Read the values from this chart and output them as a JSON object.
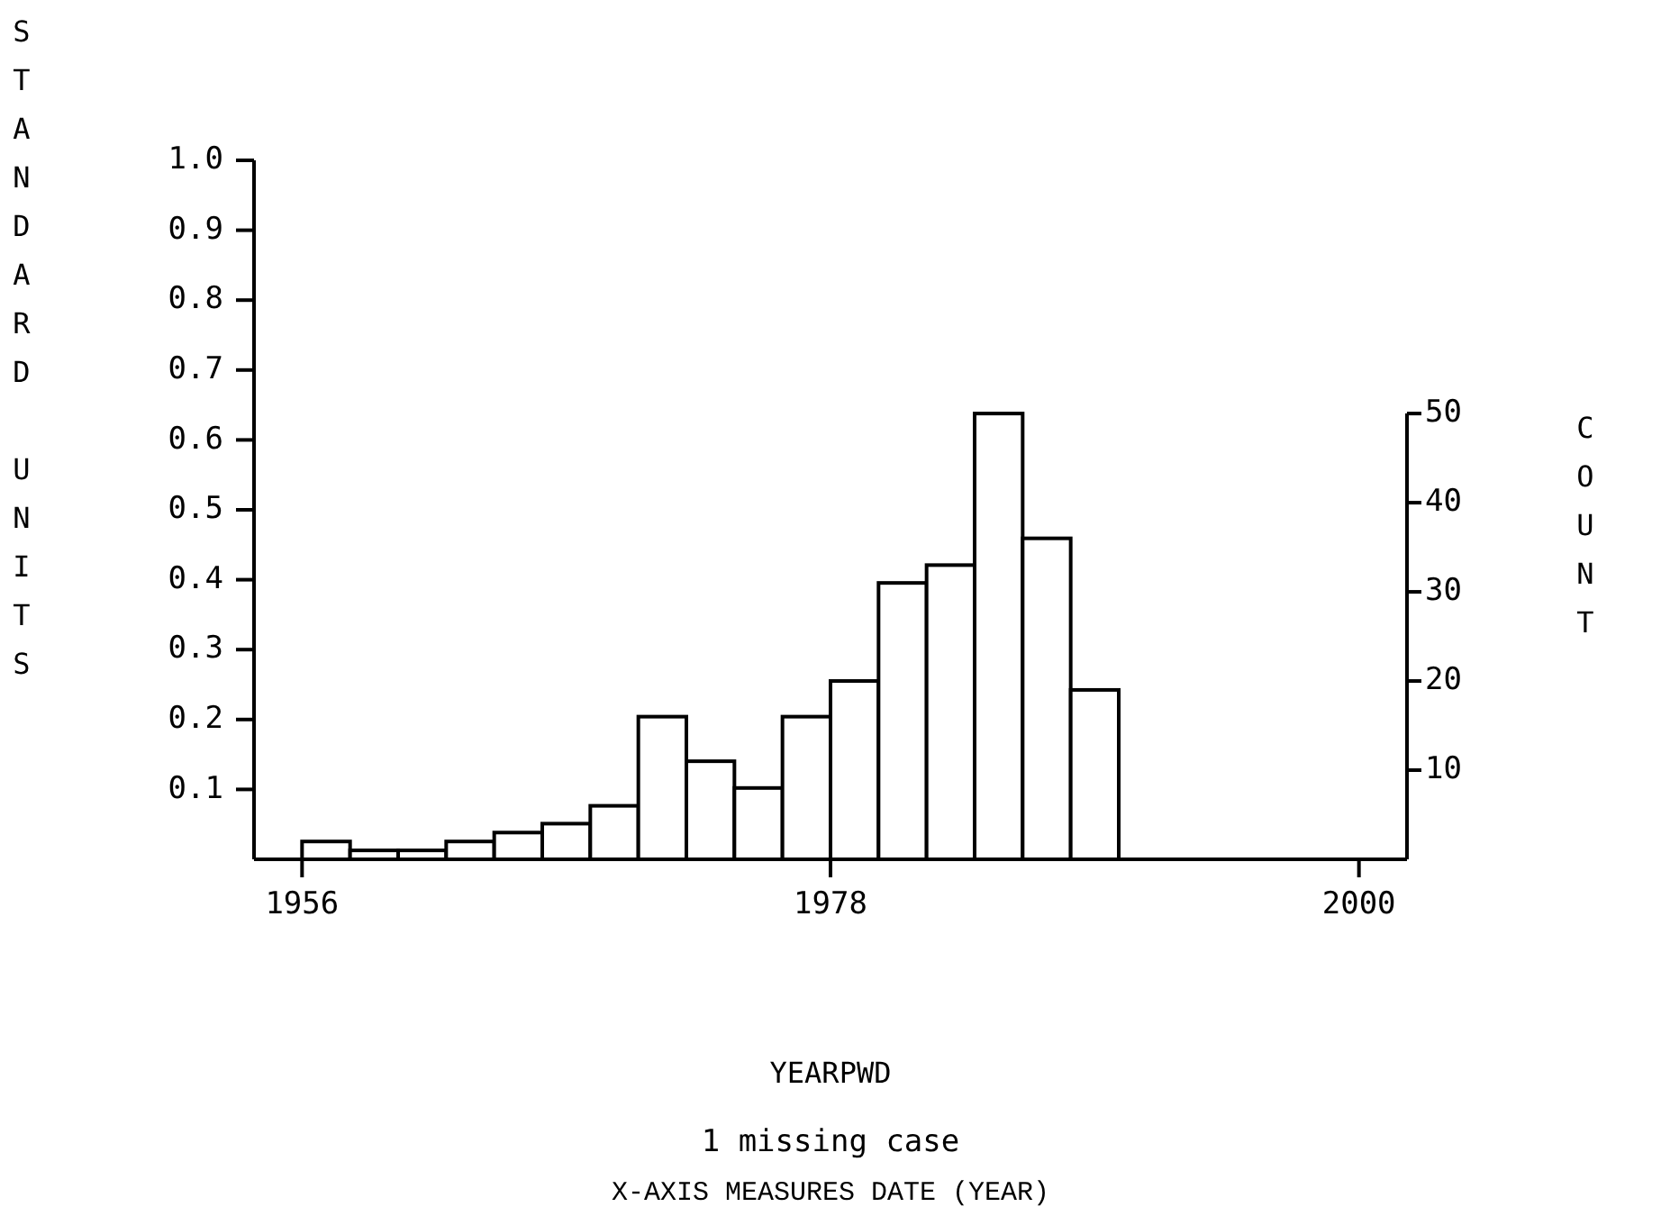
{
  "chart_data": {
    "type": "histogram",
    "bins": [
      1956,
      1958,
      1960,
      1962,
      1964,
      1966,
      1968,
      1970,
      1972,
      1974,
      1976,
      1978,
      1980,
      1982,
      1984,
      1986,
      1988,
      1990
    ],
    "series": [
      {
        "values": [
          2,
          1,
          1,
          2,
          3,
          4,
          6,
          16,
          11,
          8,
          16,
          20,
          31,
          33,
          50,
          36,
          19
        ],
        "axis": "y2"
      }
    ],
    "xlabel": "YEARPWD",
    "ylabel": "STANDARD UNITS",
    "y2label": "COUNT",
    "annotations": [
      "1 missing case",
      "X-AXIS MEASURES DATE (YEAR)"
    ],
    "xlim": [
      1954,
      2002
    ],
    "xticks": [
      1956,
      1978,
      2000
    ],
    "ylim": [
      0,
      1
    ],
    "yticks": [
      0.1,
      0.2,
      0.3,
      0.4,
      0.5,
      0.6,
      0.7,
      0.8,
      0.9,
      {
        "value": 1,
        "label": "1.0"
      }
    ],
    "y2lim": [
      0,
      78.4
    ],
    "y2ticks": [
      10,
      20,
      30,
      40,
      50
    ],
    "grid": false
  }
}
